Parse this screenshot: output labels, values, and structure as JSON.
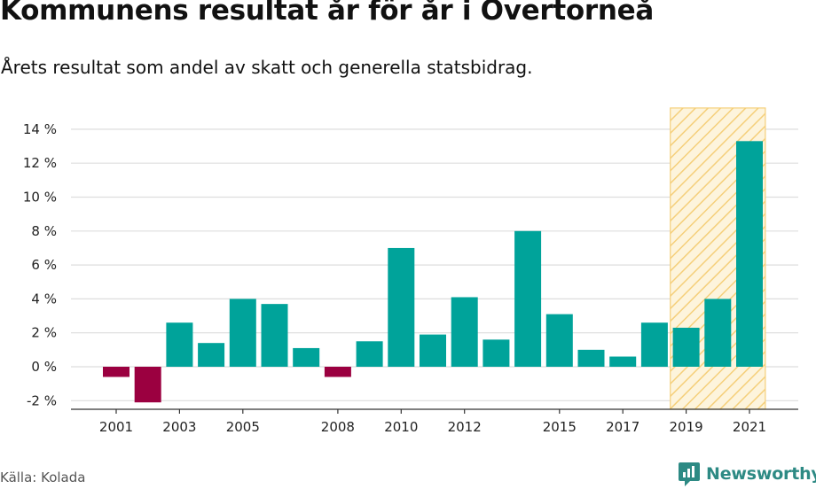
{
  "header": {
    "title": "Kommunens resultat år för år i Overtorneå",
    "subtitle": "Årets resultat som andel av skatt och generella statsbidrag."
  },
  "footer": {
    "source": "Källa: Kolada",
    "brand": "Newsworthy"
  },
  "colors": {
    "positive": "#00a39a",
    "negative": "#9b0040",
    "highlight_fill": "#fdf4dc",
    "highlight_stroke": "#f5cf7a",
    "grid": "#dddddd",
    "axis": "#333333",
    "brand": "#2d8a84"
  },
  "chart_data": {
    "type": "bar",
    "title": "Kommunens resultat år för år i Overtorneå",
    "subtitle": "Årets resultat som andel av skatt och generella statsbidrag.",
    "xlabel": "",
    "ylabel": "",
    "unit": "%",
    "ylim": [
      -2,
      14
    ],
    "yticks": [
      -2,
      0,
      2,
      4,
      6,
      8,
      10,
      12,
      14
    ],
    "ytick_labels": [
      "-2 %",
      "0 %",
      "2 %",
      "4 %",
      "6 %",
      "8 %",
      "10 %",
      "12 %",
      "14 %"
    ],
    "grid": true,
    "categories": [
      "2001",
      "2002",
      "2003",
      "2004",
      "2005",
      "2006",
      "2007",
      "2008",
      "2009",
      "2010",
      "2011",
      "2012",
      "2013",
      "2014",
      "2015",
      "2016",
      "2017",
      "2018",
      "2019",
      "2020",
      "2021"
    ],
    "values": [
      -0.6,
      -2.1,
      2.6,
      1.4,
      4.0,
      3.7,
      1.1,
      -0.6,
      1.5,
      7.0,
      1.9,
      4.1,
      1.6,
      8.0,
      3.1,
      1.0,
      0.6,
      2.6,
      2.3,
      4.0,
      13.3
    ],
    "xtick_labels": [
      "2001",
      "2003",
      "2005",
      "2008",
      "2010",
      "2012",
      "2015",
      "2017",
      "2019",
      "2021"
    ],
    "highlighted_categories": [
      "2019",
      "2020",
      "2021"
    ]
  }
}
